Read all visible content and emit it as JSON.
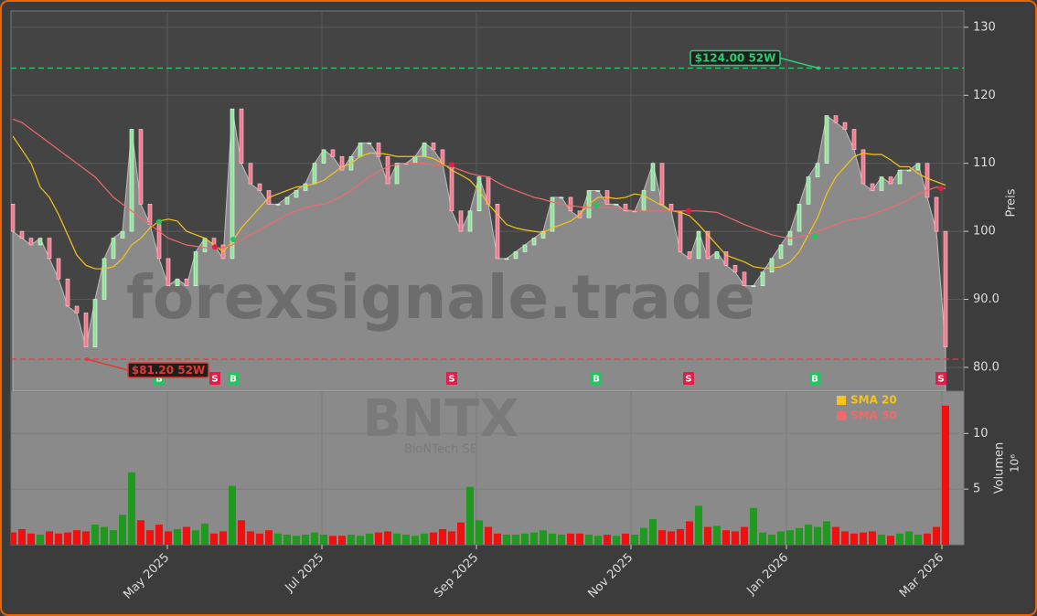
{
  "chart_data": {
    "type": "candlestick",
    "watermark": "forexsignale.trade",
    "symbol": "BNTX",
    "company": "BioNTech SE",
    "xlim": [
      -0.2,
      104.0
    ],
    "xticks": [
      {
        "value": 16.9,
        "label": "May 2025"
      },
      {
        "value": 33.8,
        "label": "Jul 2025"
      },
      {
        "value": 50.7,
        "label": "Sep 2025"
      },
      {
        "value": 67.6,
        "label": "Nov 2025"
      },
      {
        "value": 84.6,
        "label": "Jan 2026"
      },
      {
        "value": 101.6,
        "label": "Mar 2026"
      }
    ],
    "ylim": [
      76.5,
      132.4
    ],
    "yticks": [
      {
        "value": 80,
        "label": "80.0"
      },
      {
        "value": 90,
        "label": "90.0"
      },
      100,
      110,
      120,
      130
    ],
    "ylabel": "Preis",
    "grid": true,
    "up_color": "#8fe39a",
    "down_color": "#f27a8e",
    "area_color": "#8a8a8a",
    "open": [
      104,
      100,
      99,
      98,
      99,
      96,
      93,
      89,
      88,
      83,
      90,
      96,
      99,
      100,
      115,
      104,
      101,
      96,
      92,
      93,
      92,
      97,
      99,
      98,
      96,
      118,
      110,
      107,
      106,
      104,
      104,
      105,
      106,
      107,
      110,
      112,
      111,
      109,
      111,
      113,
      113,
      111,
      107,
      110,
      110,
      111,
      113,
      112,
      110,
      103,
      100,
      103,
      108,
      104,
      96,
      96,
      97,
      98,
      99,
      100,
      105,
      105,
      103,
      102,
      106,
      106,
      104,
      104,
      103,
      103,
      106,
      110,
      104,
      103,
      97,
      96,
      100,
      96,
      97,
      95,
      94,
      92,
      92,
      94,
      96,
      98,
      100,
      104,
      108,
      110,
      117,
      116,
      115,
      112,
      107,
      106,
      108,
      107,
      109,
      109,
      110,
      105,
      100
    ],
    "close": [
      100,
      99,
      98,
      99,
      96,
      93,
      89,
      88,
      83,
      90,
      96,
      99,
      100,
      115,
      104,
      101,
      96,
      92,
      93,
      92,
      97,
      99,
      98,
      96,
      118,
      110,
      107,
      106,
      104,
      104,
      105,
      106,
      107,
      110,
      112,
      111,
      109,
      111,
      113,
      113,
      111,
      107,
      110,
      110,
      111,
      113,
      112,
      110,
      103,
      100,
      103,
      108,
      104,
      96,
      96,
      97,
      98,
      99,
      100,
      105,
      105,
      103,
      102,
      106,
      106,
      104,
      104,
      103,
      103,
      106,
      110,
      104,
      103,
      97,
      96,
      100,
      96,
      97,
      95,
      94,
      92,
      92,
      94,
      96,
      98,
      100,
      104,
      108,
      110,
      117,
      116,
      115,
      112,
      107,
      106,
      108,
      107,
      109,
      109,
      110,
      105,
      100,
      83
    ],
    "series": [
      {
        "name": "SMA 20",
        "color": "#f5c518",
        "values": [
          114,
          112,
          110,
          106.5,
          105,
          102.5,
          99.5,
          96.5,
          95,
          94.5,
          94.5,
          94.8,
          96,
          98,
          99,
          100.5,
          101.5,
          101.8,
          101.5,
          100,
          99.5,
          99,
          98,
          97,
          98.5,
          100.5,
          102,
          103.5,
          105,
          105.5,
          106,
          106.5,
          106.7,
          107,
          107.5,
          108.5,
          109.5,
          110,
          111,
          111.5,
          111.5,
          111.3,
          111,
          111,
          111,
          111,
          110.7,
          110,
          109,
          108.3,
          107.5,
          106,
          104,
          102.5,
          101,
          100.5,
          100.2,
          100,
          99.8,
          100.5,
          101,
          101.5,
          102.5,
          104,
          105,
          105,
          104.8,
          105,
          105.5,
          105.3,
          104.5,
          103.8,
          103,
          102.8,
          102.3,
          101,
          99.5,
          98,
          96.5,
          96,
          95.5,
          94.8,
          94.6,
          94.6,
          94.8,
          95.5,
          97,
          99.5,
          102,
          105.5,
          108,
          109.5,
          111,
          111.5,
          111.3,
          111.3,
          110.5,
          109.5,
          109.5,
          108.5,
          107.8,
          107.3,
          106.8
        ]
      },
      {
        "name": "SMA 50",
        "color": "#f06a6a",
        "values": [
          116.5,
          116,
          115,
          114,
          113,
          112,
          111,
          110,
          109,
          108,
          106.5,
          105,
          104,
          103,
          102,
          101,
          100,
          99,
          98.5,
          98,
          97.8,
          97.6,
          97.5,
          97.6,
          98,
          98.8,
          99.5,
          100.2,
          101,
          101.7,
          102.5,
          103,
          103.5,
          103.8,
          104,
          104.5,
          105.2,
          106,
          107,
          108,
          108.8,
          109.5,
          109.8,
          110,
          110,
          110,
          109.8,
          109.7,
          109.5,
          109,
          108.5,
          108.2,
          108,
          107.2,
          106.5,
          106,
          105.5,
          105,
          104.7,
          104.3,
          104,
          103.8,
          103.6,
          103.5,
          103.5,
          103.5,
          103.5,
          103.2,
          103,
          103,
          103,
          103,
          103,
          103,
          103,
          103,
          102.9,
          102.8,
          102.2,
          101.6,
          101,
          100.5,
          100,
          99.5,
          99.2,
          99,
          99.2,
          99.5,
          100,
          100.5,
          101,
          101.5,
          101.8,
          102,
          102.5,
          103,
          103.5,
          104,
          104.7,
          105.5,
          106,
          106.5,
          106.3
        ]
      }
    ],
    "legend": "upper right",
    "levels": [
      {
        "label": "$124.00 52W",
        "value": 124,
        "x": 88.1,
        "color": "#2ecc71"
      },
      {
        "label": "$81.20 52W",
        "value": 81.2,
        "x": 8.1,
        "color": "#e53935"
      }
    ],
    "signals": [
      {
        "label": "B",
        "x": 16,
        "price": 101.4
      },
      {
        "label": "S",
        "x": 22.1,
        "price": 97.7
      },
      {
        "label": "B",
        "x": 24.1,
        "price": 98.8
      },
      {
        "label": "S",
        "x": 48,
        "price": 109.8
      },
      {
        "label": "B",
        "x": 63.8,
        "price": 103.8
      },
      {
        "label": "S",
        "x": 73.9,
        "price": 103
      },
      {
        "label": "B",
        "x": 87.7,
        "price": 99.3
      },
      {
        "label": "S",
        "x": 101.5,
        "price": 106.3
      }
    ],
    "buy_color": "#22c55e",
    "sell_color": "#e11d48",
    "volume": {
      "values": [
        1.1,
        1.4,
        1.0,
        0.9,
        1.2,
        1.0,
        1.1,
        1.3,
        1.2,
        1.8,
        1.6,
        1.3,
        2.7,
        6.5,
        2.2,
        1.3,
        1.8,
        1.2,
        1.4,
        1.6,
        1.3,
        1.9,
        1.0,
        1.2,
        5.3,
        2.2,
        1.2,
        1.0,
        1.3,
        1.0,
        0.9,
        0.8,
        0.9,
        1.1,
        0.9,
        0.8,
        0.8,
        0.9,
        0.8,
        1.0,
        1.1,
        1.2,
        1.0,
        0.9,
        0.8,
        1.0,
        1.1,
        1.4,
        1.2,
        2.0,
        5.2,
        2.2,
        1.6,
        1.0,
        0.9,
        0.9,
        1.0,
        1.1,
        1.3,
        1.0,
        0.9,
        1.0,
        1.0,
        0.9,
        0.8,
        0.9,
        0.8,
        1.0,
        0.9,
        1.5,
        2.3,
        1.3,
        1.2,
        1.4,
        2.1,
        3.5,
        1.6,
        1.7,
        1.3,
        1.2,
        1.6,
        3.3,
        1.1,
        0.9,
        1.2,
        1.3,
        1.5,
        1.8,
        1.6,
        2.1,
        1.6,
        1.2,
        1.0,
        1.1,
        1.2,
        0.9,
        0.8,
        1.0,
        1.2,
        0.9,
        1.0,
        1.6,
        12.5
      ],
      "ylim": [
        0,
        13.8
      ],
      "yticks": [
        5,
        10
      ],
      "ylabel": "Volumen",
      "unit": "10⁶",
      "up_color": "#1f9a1f",
      "down_color": "#f01010"
    }
  }
}
